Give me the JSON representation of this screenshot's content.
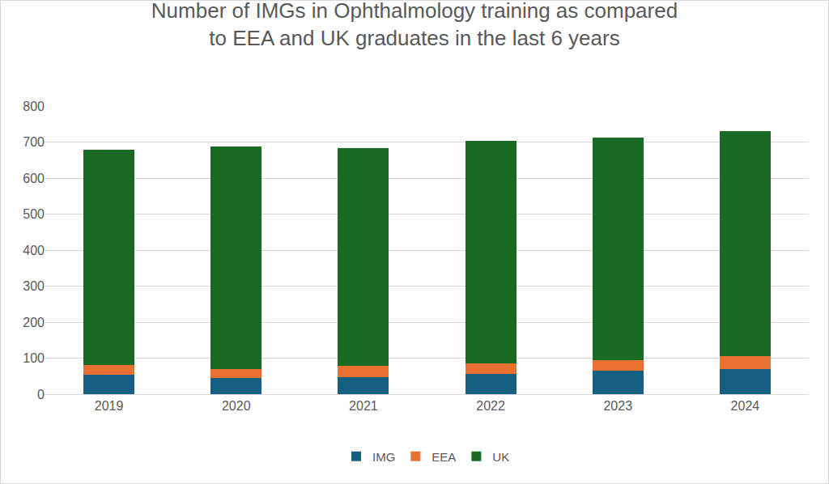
{
  "chart_data": {
    "type": "bar",
    "stacked": true,
    "title": "Number of IMGs in Ophthalmology training as compared\nto EEA and UK graduates in the last 6 years",
    "categories": [
      "2019",
      "2020",
      "2021",
      "2022",
      "2023",
      "2024"
    ],
    "series": [
      {
        "name": "IMG",
        "color": "#156082",
        "values": [
          55,
          45,
          48,
          57,
          65,
          70
        ]
      },
      {
        "name": "EEA",
        "color": "#e97132",
        "values": [
          25,
          25,
          30,
          28,
          30,
          35
        ]
      },
      {
        "name": "UK",
        "color": "#196b24",
        "values": [
          598,
          617,
          605,
          619,
          617,
          625
        ]
      }
    ],
    "ylim": [
      0,
      800
    ],
    "yticks": [
      0,
      100,
      200,
      300,
      400,
      500,
      600,
      700,
      800
    ],
    "grid": true,
    "legend": "bottom"
  }
}
